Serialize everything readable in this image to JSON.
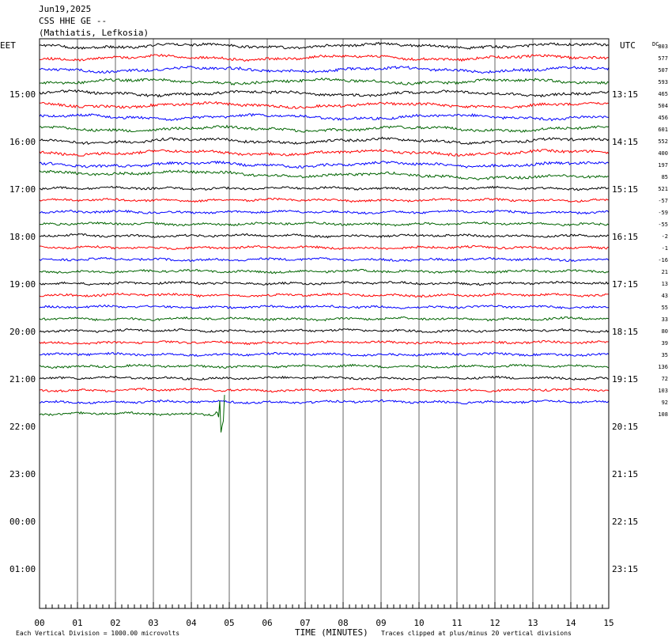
{
  "header": {
    "date": "Jun19,2025",
    "station": "CSS HHE GE --",
    "location": "(Mathiatis, Lefkosia)"
  },
  "left_tz": "EET",
  "right_tz": "UTC",
  "dc_header": "DC",
  "footer": {
    "scale_note": "Each Vertical Division = 1000.00 microvolts",
    "axis_title": "TIME (MINUTES)",
    "clip_note": "Traces clipped at plus/minus 20 vertical divisions"
  },
  "chart_data": {
    "type": "line",
    "x_ticks": [
      "00",
      "01",
      "02",
      "03",
      "04",
      "05",
      "06",
      "07",
      "08",
      "09",
      "10",
      "11",
      "12",
      "13",
      "14",
      "15"
    ],
    "xlim": [
      0,
      15
    ],
    "rows_left": [
      "15:00",
      "16:00",
      "17:00",
      "18:00",
      "19:00",
      "20:00",
      "21:00",
      "22:00",
      "23:00",
      "00:00",
      "01:00"
    ],
    "rows_right": [
      "13:15",
      "14:15",
      "15:15",
      "16:15",
      "17:15",
      "18:15",
      "19:15",
      "20:15",
      "21:15",
      "22:15",
      "23:15"
    ],
    "dc_offsets": [
      "803",
      "577",
      "507",
      "593",
      "465",
      "504",
      "456",
      "601",
      "552",
      "400",
      "197",
      "85",
      "521",
      "-57",
      "-59",
      "-55",
      "-2",
      "-1",
      "-16",
      "21",
      "13",
      "43",
      "55",
      "33",
      "80",
      "39",
      "35",
      "136",
      "72",
      "103",
      "92",
      "108"
    ],
    "trace_colors": [
      "#000000",
      "#ff0000",
      "#0000ff",
      "#006400"
    ],
    "trace_count": 32,
    "event": {
      "trace_index": 31,
      "minute": 4.85
    }
  }
}
